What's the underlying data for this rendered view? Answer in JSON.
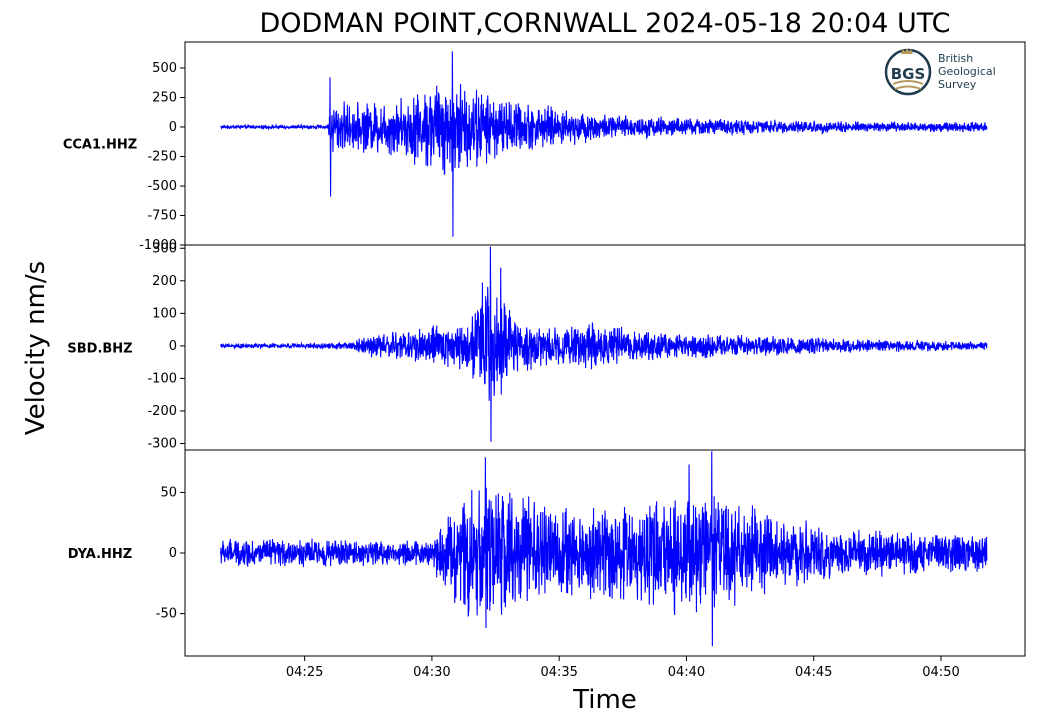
{
  "chart_data": {
    "type": "line",
    "title": "DODMAN POINT,CORNWALL   2024-05-18 20:04 UTC",
    "xlabel": "Time",
    "ylabel": "Velocity nm/s",
    "x_ticks": [
      "04:25",
      "04:30",
      "04:35",
      "04:40",
      "04:45",
      "04:50"
    ],
    "x_tick_minutes": [
      25,
      30,
      35,
      40,
      45,
      50
    ],
    "x_range_minutes": [
      20.3,
      53.3
    ],
    "trace_start_minute": 21.7,
    "trace_end_minute": 51.8,
    "series_color": "#0000ff",
    "panels": [
      {
        "station": "CCA1.HHZ",
        "ylim": [
          -1000,
          720
        ],
        "y_ticks": [
          500,
          250,
          0,
          -250,
          -500,
          -750,
          -1000
        ],
        "noise_level": 12,
        "peaks": [
          {
            "minute": 26.0,
            "max": 420,
            "min": -590
          },
          {
            "minute": 30.8,
            "max": 640,
            "min": -930
          }
        ],
        "envelope": [
          [
            21.7,
            12
          ],
          [
            25.9,
            12
          ],
          [
            26.05,
            180
          ],
          [
            27,
            150
          ],
          [
            29,
            200
          ],
          [
            30.3,
            320
          ],
          [
            31.2,
            300
          ],
          [
            32.5,
            200
          ],
          [
            35,
            120
          ],
          [
            37,
            80
          ],
          [
            40,
            60
          ],
          [
            45,
            40
          ],
          [
            51.8,
            30
          ]
        ]
      },
      {
        "station": "SBD.BHZ",
        "ylim": [
          -320,
          310
        ],
        "y_ticks": [
          300,
          200,
          100,
          0,
          -100,
          -200,
          -300
        ],
        "noise_level": 5,
        "peaks": [
          {
            "minute": 32.3,
            "max": 305,
            "min": -295
          },
          {
            "minute": 32.7,
            "max": 240,
            "min": -150
          }
        ],
        "envelope": [
          [
            21.7,
            5
          ],
          [
            26.5,
            7
          ],
          [
            27.5,
            25
          ],
          [
            29,
            40
          ],
          [
            31.5,
            55
          ],
          [
            32.1,
            170
          ],
          [
            32.9,
            90
          ],
          [
            33.5,
            60
          ],
          [
            35,
            45
          ],
          [
            36.5,
            55
          ],
          [
            38,
            35
          ],
          [
            42,
            25
          ],
          [
            47,
            15
          ],
          [
            51.8,
            10
          ]
        ]
      },
      {
        "station": "DYA.HHZ",
        "ylim": [
          -85,
          85
        ],
        "y_ticks": [
          50,
          0,
          -50
        ],
        "noise_level": 8,
        "peaks": [
          {
            "minute": 32.1,
            "max": 79,
            "min": -62
          },
          {
            "minute": 41.0,
            "max": 84,
            "min": -77
          },
          {
            "minute": 40.1,
            "max": 73,
            "min": -40
          }
        ],
        "envelope": [
          [
            21.7,
            9
          ],
          [
            30.0,
            8
          ],
          [
            30.5,
            25
          ],
          [
            31.5,
            45
          ],
          [
            33,
            38
          ],
          [
            35,
            28
          ],
          [
            38,
            32
          ],
          [
            41,
            40
          ],
          [
            43,
            25
          ],
          [
            46,
            15
          ],
          [
            51.8,
            12
          ]
        ]
      }
    ]
  },
  "logo": {
    "mark": "BGS",
    "lines": [
      "British",
      "Geological",
      "Survey"
    ],
    "accent": "#b89a5a",
    "dark": "#1f3d4f"
  }
}
